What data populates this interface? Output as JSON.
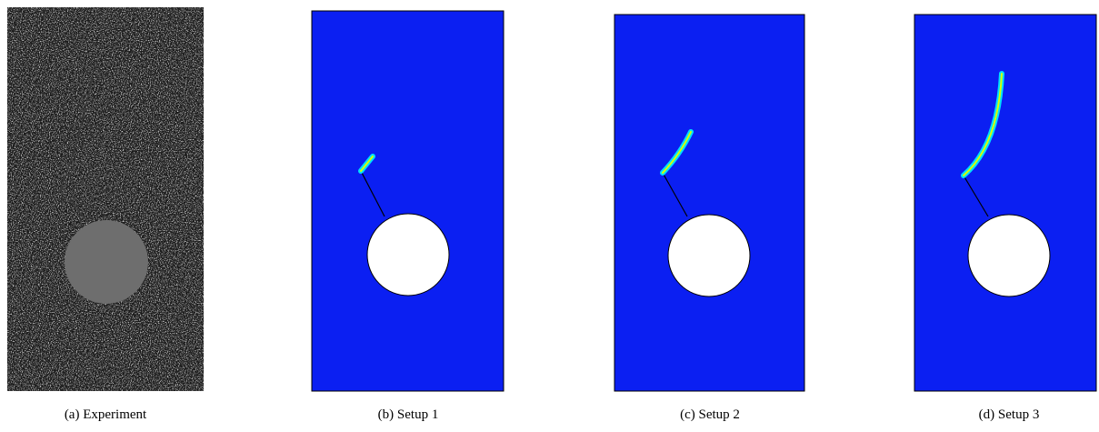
{
  "figure": {
    "captions": [
      "(a) Experiment",
      "(b) Setup 1",
      "(c) Setup 2",
      "(d) Setup 3"
    ]
  }
}
